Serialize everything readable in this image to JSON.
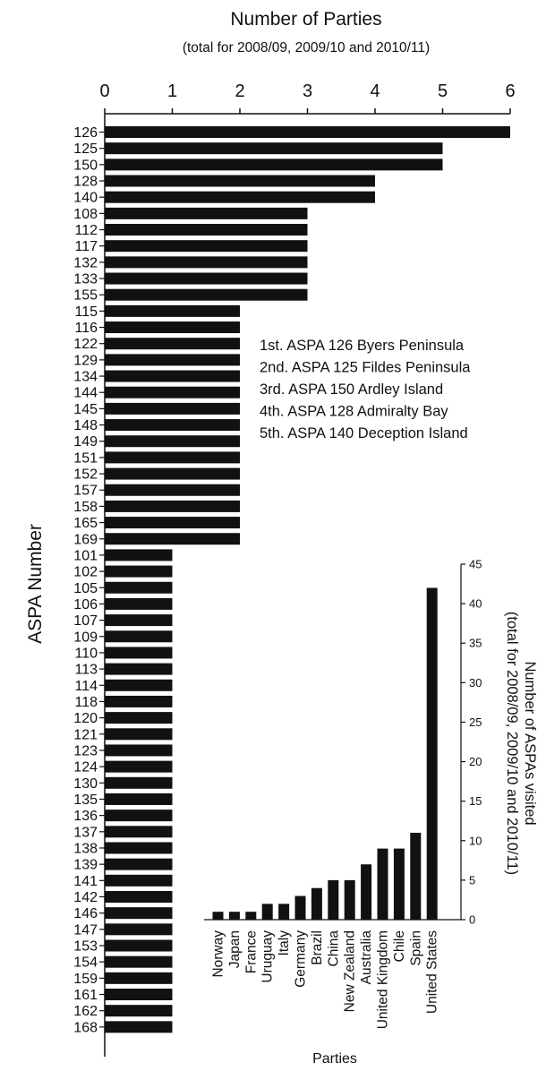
{
  "chart_data": [
    {
      "type": "bar",
      "orientation": "horizontal",
      "title": "Number of Parties",
      "subtitle": "(total for 2008/09, 2009/10 and 2010/11)",
      "ylabel": "ASPA Number",
      "xlim": [
        0,
        6
      ],
      "xticks": [
        "0",
        "1",
        "2",
        "3",
        "4",
        "5",
        "6"
      ],
      "x_axis_position": "top",
      "grid": false,
      "categories": [
        "126",
        "125",
        "150",
        "128",
        "140",
        "108",
        "112",
        "117",
        "132",
        "133",
        "155",
        "115",
        "116",
        "122",
        "129",
        "134",
        "144",
        "145",
        "148",
        "149",
        "151",
        "152",
        "157",
        "158",
        "165",
        "169",
        "101",
        "102",
        "105",
        "106",
        "107",
        "109",
        "110",
        "113",
        "114",
        "118",
        "120",
        "121",
        "123",
        "124",
        "130",
        "135",
        "136",
        "137",
        "138",
        "139",
        "141",
        "142",
        "146",
        "147",
        "153",
        "154",
        "159",
        "161",
        "162",
        "168"
      ],
      "values": [
        6,
        5,
        5,
        4,
        4,
        3,
        3,
        3,
        3,
        3,
        3,
        2,
        2,
        2,
        2,
        2,
        2,
        2,
        2,
        2,
        2,
        2,
        2,
        2,
        2,
        2,
        1,
        1,
        1,
        1,
        1,
        1,
        1,
        1,
        1,
        1,
        1,
        1,
        1,
        1,
        1,
        1,
        1,
        1,
        1,
        1,
        1,
        1,
        1,
        1,
        1,
        1,
        1,
        1,
        1,
        1
      ],
      "bar_color": "#111111",
      "annotations": [
        "1st. ASPA 126 Byers Peninsula",
        "2nd. ASPA 125 Fildes Peninsula",
        "3rd. ASPA 150 Ardley Island",
        "4th. ASPA 128 Admiralty Bay",
        "5th. ASPA 140 Deception Island"
      ]
    },
    {
      "type": "bar",
      "orientation": "vertical",
      "inset": true,
      "xlabel": "Parties",
      "ylabel": "Number of ASPAs visited (total for 2008/09, 2009/10 and 2010/11)",
      "ylabel_lines": [
        "Number of ASPAs visited",
        "(total for 2008/09, 2009/10 and 2010/11)"
      ],
      "ylim": [
        0,
        45
      ],
      "yticks": [
        "0",
        "5",
        "10",
        "15",
        "20",
        "25",
        "30",
        "35",
        "40",
        "45"
      ],
      "y_axis_position": "right",
      "grid": false,
      "categories": [
        "Norway",
        "Japan",
        "France",
        "Uruguay",
        "Italy",
        "Germany",
        "Brazil",
        "China",
        "New Zealand",
        "Australia",
        "United Kingdom",
        "Chile",
        "Spain",
        "United States"
      ],
      "values": [
        1,
        1,
        1,
        2,
        2,
        3,
        4,
        5,
        5,
        7,
        9,
        9,
        11,
        42
      ],
      "bar_color": "#111111"
    }
  ]
}
